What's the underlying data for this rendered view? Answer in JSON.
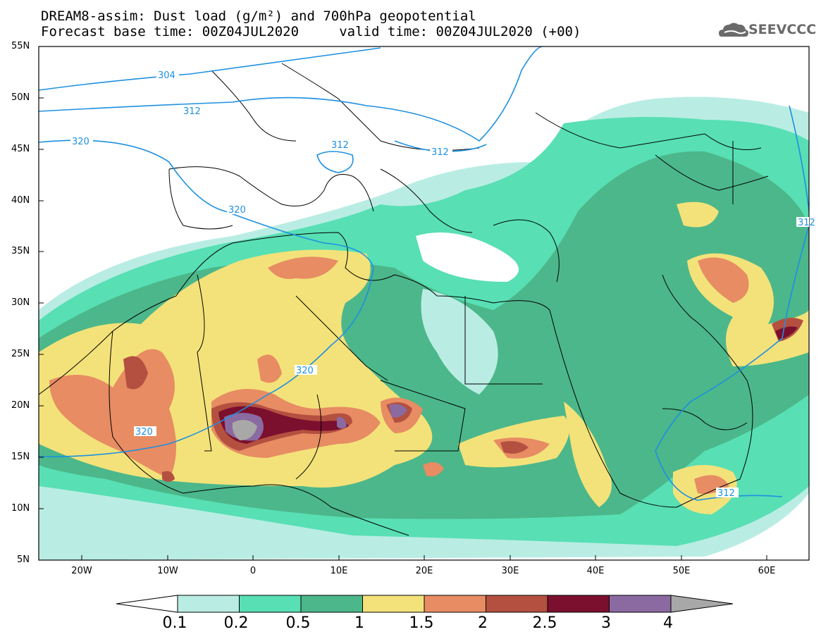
{
  "title": {
    "line1": "DREAM8-assim: Dust load (g/m²) and 700hPa geopotential",
    "line2": "Forecast base time: 00Z04JUL2020     valid time: 00Z04JUL2020 (+00)"
  },
  "logo": {
    "text": "SEEVCCC",
    "icon": "cloud-icon"
  },
  "map": {
    "lat_labels": [
      "55N",
      "50N",
      "45N",
      "40N",
      "35N",
      "30N",
      "25N",
      "20N",
      "15N",
      "10N",
      "5N"
    ],
    "lon_labels": [
      "20W",
      "10W",
      "0",
      "10E",
      "20E",
      "30E",
      "40E",
      "50E",
      "60E"
    ],
    "contour_labels": [
      "304",
      "312",
      "320",
      "312",
      "312",
      "320",
      "320",
      "320",
      "312",
      "312"
    ]
  },
  "colorbar": {
    "labels": [
      "0.1",
      "0.2",
      "0.5",
      "1",
      "1.5",
      "2",
      "2.5",
      "3",
      "4"
    ],
    "colors": [
      "#b9ede3",
      "#58dfb4",
      "#4cb78a",
      "#f3e27a",
      "#e78c63",
      "#b4503f",
      "#7b0f2e",
      "#8a6aa0",
      "#a8a8a8"
    ]
  }
}
